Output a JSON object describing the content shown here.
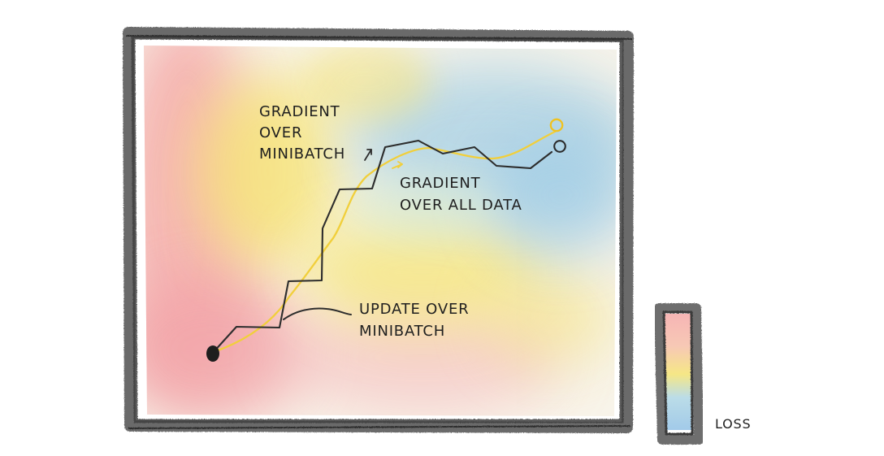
{
  "labels": {
    "gradient_minibatch_line1": "GRADIENT",
    "gradient_minibatch_line2": "OVER",
    "gradient_minibatch_line3": "MINIBATCH",
    "gradient_all_line1": "GRADIENT",
    "gradient_all_line2": "OVER ALL DATA",
    "update_line1": "UPDATE OVER",
    "update_line2": "MINIBATCH",
    "legend": "LOSS"
  },
  "colors": {
    "frame": "#4a4a4a",
    "minibatch_path": "#2a2a2a",
    "full_gradient_path": "#f2d23c",
    "start_point": "#1d1d1d",
    "goal_yellow": "#f0c21f",
    "goal_black": "#2a2a2a",
    "loss_high": "#f2a7a7",
    "loss_mid": "#f3e07a",
    "loss_low": "#9fcbe7"
  }
}
